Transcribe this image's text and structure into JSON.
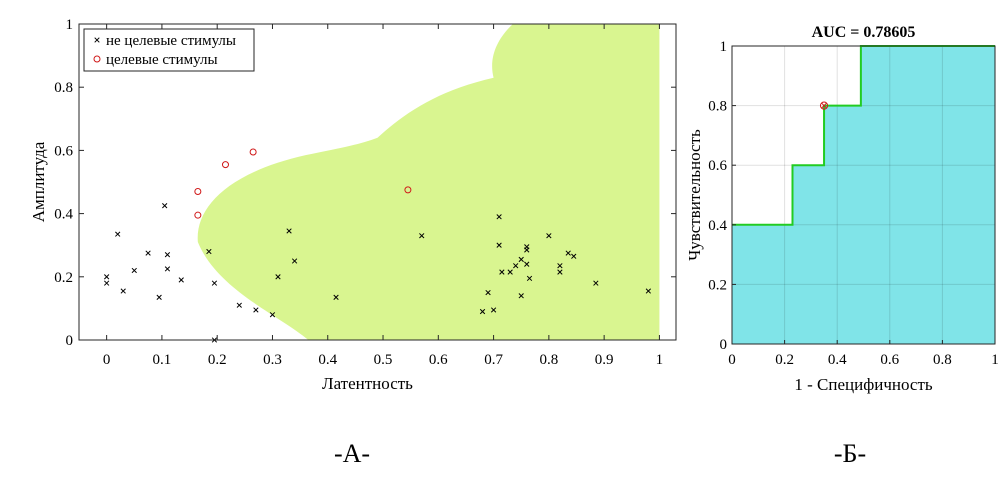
{
  "chart_data": [
    {
      "type": "scatter",
      "xlabel": "Латентность",
      "ylabel": "Амплитуда",
      "xlim": [
        -0.05,
        1.03
      ],
      "ylim": [
        0,
        1
      ],
      "x_ticks": [
        "0",
        "0.1",
        "0.2",
        "0.3",
        "0.4",
        "0.5",
        "0.6",
        "0.7",
        "0.8",
        "0.9",
        "1"
      ],
      "y_ticks": [
        "0",
        "0.2",
        "0.4",
        "0.6",
        "0.8",
        "1"
      ],
      "region_color": "#d9f590",
      "legend_position": "top-left",
      "series": [
        {
          "name": "не целевые стимулы",
          "marker": "x",
          "color": "#000000",
          "points": [
            [
              0.0,
              0.2
            ],
            [
              0.0,
              0.18
            ],
            [
              0.02,
              0.335
            ],
            [
              0.03,
              0.155
            ],
            [
              0.05,
              0.22
            ],
            [
              0.075,
              0.275
            ],
            [
              0.095,
              0.135
            ],
            [
              0.105,
              0.425
            ],
            [
              0.11,
              0.27
            ],
            [
              0.11,
              0.225
            ],
            [
              0.135,
              0.19
            ],
            [
              0.185,
              0.28
            ],
            [
              0.195,
              0.18
            ],
            [
              0.195,
              0.0
            ],
            [
              0.24,
              0.11
            ],
            [
              0.27,
              0.095
            ],
            [
              0.3,
              0.08
            ],
            [
              0.31,
              0.2
            ],
            [
              0.33,
              0.345
            ],
            [
              0.34,
              0.25
            ],
            [
              0.415,
              0.135
            ],
            [
              0.57,
              0.33
            ],
            [
              0.68,
              0.09
            ],
            [
              0.69,
              0.15
            ],
            [
              0.7,
              0.095
            ],
            [
              0.71,
              0.39
            ],
            [
              0.71,
              0.3
            ],
            [
              0.715,
              0.215
            ],
            [
              0.73,
              0.215
            ],
            [
              0.74,
              0.235
            ],
            [
              0.75,
              0.255
            ],
            [
              0.75,
              0.14
            ],
            [
              0.76,
              0.295
            ],
            [
              0.76,
              0.285
            ],
            [
              0.76,
              0.24
            ],
            [
              0.765,
              0.195
            ],
            [
              0.8,
              0.33
            ],
            [
              0.82,
              0.235
            ],
            [
              0.82,
              0.215
            ],
            [
              0.835,
              0.275
            ],
            [
              0.845,
              0.265
            ],
            [
              0.885,
              0.18
            ],
            [
              0.98,
              0.155
            ]
          ]
        },
        {
          "name": "целевые стимулы",
          "marker": "o",
          "color": "#d01818",
          "points": [
            [
              0.165,
              0.47
            ],
            [
              0.165,
              0.395
            ],
            [
              0.215,
              0.555
            ],
            [
              0.265,
              0.595
            ],
            [
              0.545,
              0.475
            ]
          ]
        }
      ]
    },
    {
      "type": "area",
      "title": "AUC = 0.78605",
      "xlabel": "1 - Специфичность",
      "ylabel": "Чувствительность",
      "xlim": [
        0,
        1
      ],
      "ylim": [
        0,
        1
      ],
      "x_ticks": [
        "0",
        "0.2",
        "0.4",
        "0.6",
        "0.8",
        "1"
      ],
      "y_ticks": [
        "0",
        "0.2",
        "0.4",
        "0.6",
        "0.8",
        "1"
      ],
      "grid": true,
      "fill_color": "#80e4e8",
      "line_color": "#22cc22",
      "x": [
        0,
        0.23,
        0.23,
        0.35,
        0.35,
        0.49,
        0.49,
        1.0
      ],
      "y": [
        0.4,
        0.4,
        0.6,
        0.6,
        0.8,
        0.8,
        1.0,
        1.0
      ],
      "operating_point": [
        0.35,
        0.8
      ]
    }
  ],
  "panel_labels": [
    "-А-",
    "-Б-"
  ]
}
